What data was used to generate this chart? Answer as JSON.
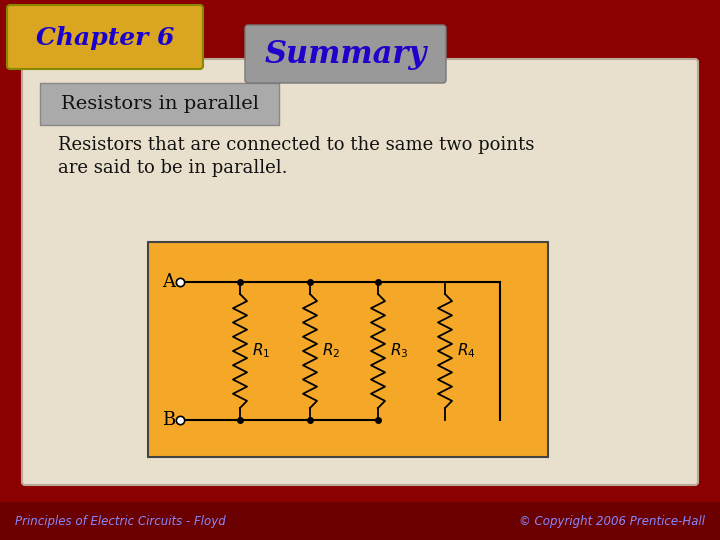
{
  "bg_color": "#8B0000",
  "slide_bg": "#e8e0cc",
  "chapter_box_color": "#DAA520",
  "chapter_text": "Chapter 6",
  "chapter_text_color": "#1A00CC",
  "summary_box_color": "#999999",
  "summary_text": "Summary",
  "summary_text_color": "#2200CC",
  "subtitle_box_color": "#aaaaaa",
  "subtitle_text": "Resistors in parallel",
  "subtitle_text_color": "#111111",
  "body_text_line1": "Resistors that are connected to the same two points",
  "body_text_line2": "are said to be in parallel.",
  "circuit_bg": "#F5A828",
  "circuit_border": "#444444",
  "footer_left": "Principles of Electric Circuits - Floyd",
  "footer_right": "© Copyright 2006 Prentice-Hall",
  "footer_text_color": "#8888FF",
  "resistor_labels": [
    "R",
    "R",
    "R",
    "R"
  ],
  "resistor_subscripts": [
    "1",
    "2",
    "3",
    "4"
  ]
}
